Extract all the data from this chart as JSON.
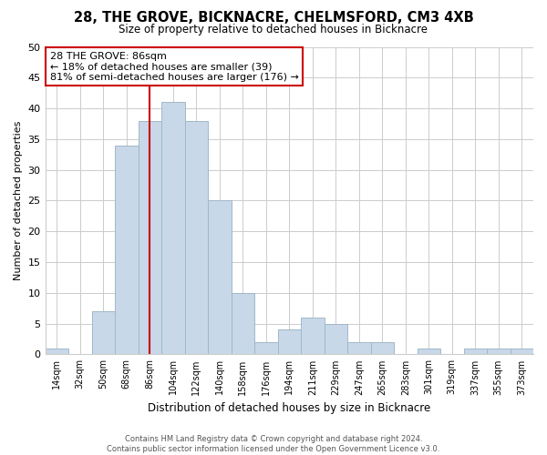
{
  "title": "28, THE GROVE, BICKNACRE, CHELMSFORD, CM3 4XB",
  "subtitle": "Size of property relative to detached houses in Bicknacre",
  "xlabel": "Distribution of detached houses by size in Bicknacre",
  "ylabel": "Number of detached properties",
  "bin_labels": [
    "14sqm",
    "32sqm",
    "50sqm",
    "68sqm",
    "86sqm",
    "104sqm",
    "122sqm",
    "140sqm",
    "158sqm",
    "176sqm",
    "194sqm",
    "211sqm",
    "229sqm",
    "247sqm",
    "265sqm",
    "283sqm",
    "301sqm",
    "319sqm",
    "337sqm",
    "355sqm",
    "373sqm"
  ],
  "bin_values": [
    1,
    0,
    7,
    34,
    38,
    41,
    38,
    25,
    10,
    2,
    4,
    6,
    5,
    2,
    2,
    0,
    1,
    0,
    1,
    1,
    1
  ],
  "bar_color": "#c8d8e8",
  "bar_edge_color": "#a0b8c8",
  "vline_x_idx": 4,
  "vline_color": "#cc0000",
  "ylim": [
    0,
    50
  ],
  "yticks": [
    0,
    5,
    10,
    15,
    20,
    25,
    30,
    35,
    40,
    45,
    50
  ],
  "annotation_title": "28 THE GROVE: 86sqm",
  "annotation_line1": "← 18% of detached houses are smaller (39)",
  "annotation_line2": "81% of semi-detached houses are larger (176) →",
  "annotation_box_color": "#ffffff",
  "annotation_box_edge": "#cc0000",
  "footer1": "Contains HM Land Registry data © Crown copyright and database right 2024.",
  "footer2": "Contains public sector information licensed under the Open Government Licence v3.0.",
  "background_color": "#ffffff",
  "grid_color": "#cccccc"
}
